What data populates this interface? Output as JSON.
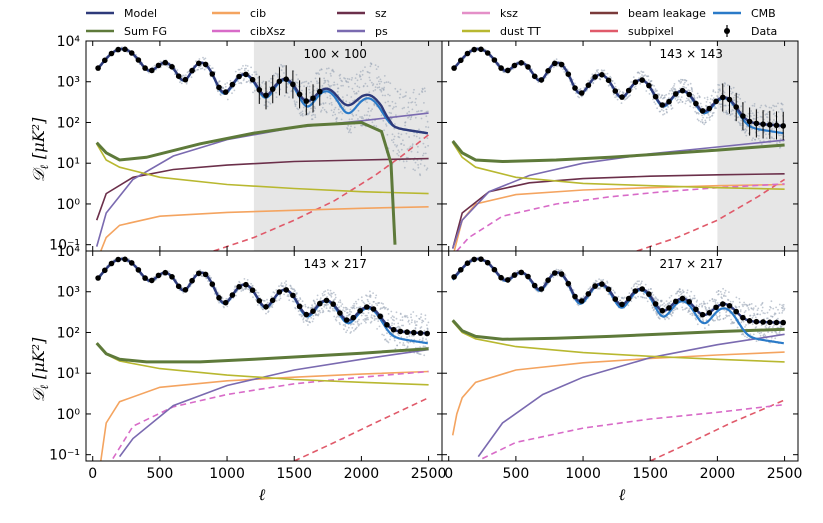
{
  "chart_data": {
    "type": "line",
    "xlabel": "ℓ",
    "ylabel_main": "𝒟",
    "ylabel_sub": "ℓ",
    "ylabel_unit": "[μK²]",
    "xlim": [
      -50,
      2600
    ],
    "ylim": [
      0.07,
      10000
    ],
    "yscale": "log",
    "x_ticks": [
      0,
      500,
      1000,
      1500,
      2000,
      2500
    ],
    "x_tick_labels": [
      "0",
      "500",
      "1000",
      "1500",
      "2000",
      "2500"
    ],
    "y_ticks": [
      0.1,
      1,
      10,
      100,
      1000,
      10000
    ],
    "y_tick_labels": [
      "10⁻¹",
      "10⁰",
      "10¹",
      "10²",
      "10³",
      "10⁴"
    ],
    "legend": [
      {
        "key": "model",
        "label": "Model",
        "color": "#2e3a7a",
        "style": "line"
      },
      {
        "key": "sumfg",
        "label": "Sum FG",
        "color": "#5e7a3a",
        "style": "line"
      },
      {
        "key": "cib",
        "label": "cib",
        "color": "#f4a460",
        "style": "line"
      },
      {
        "key": "cibxsz",
        "label": "cibXsz",
        "color": "#d86bc8",
        "style": "line"
      },
      {
        "key": "sz",
        "label": "sz",
        "color": "#6b2f4a",
        "style": "line"
      },
      {
        "key": "ps",
        "label": "ps",
        "color": "#7a6ab0",
        "style": "line"
      },
      {
        "key": "ksz",
        "label": "ksz",
        "color": "#e48fc8",
        "style": "line"
      },
      {
        "key": "dust",
        "label": "dust TT",
        "color": "#b8b830",
        "style": "line"
      },
      {
        "key": "beam",
        "label": "beam leakage",
        "color": "#7a3a3a",
        "style": "line"
      },
      {
        "key": "subpix",
        "label": "subpixel",
        "color": "#e05a6a",
        "style": "line"
      },
      {
        "key": "cmb",
        "label": "CMB",
        "color": "#2a7ac8",
        "style": "line"
      },
      {
        "key": "data",
        "label": "Data",
        "color": "#000000",
        "style": "errorbar"
      }
    ],
    "panels": [
      {
        "title": "100 × 100",
        "shade_from": 1200,
        "series": {
          "sumfg": [
            [
              30,
              32
            ],
            [
              100,
              18
            ],
            [
              200,
              12
            ],
            [
              400,
              14
            ],
            [
              800,
              30
            ],
            [
              1200,
              55
            ],
            [
              1600,
              85
            ],
            [
              2000,
              100
            ],
            [
              2150,
              60
            ],
            [
              2220,
              10
            ],
            [
              2250,
              0.1
            ]
          ],
          "ps": [
            [
              30,
              0.09
            ],
            [
              100,
              0.6
            ],
            [
              300,
              4
            ],
            [
              600,
              15
            ],
            [
              1000,
              38
            ],
            [
              1500,
              75
            ],
            [
              2000,
              110
            ],
            [
              2500,
              170
            ]
          ],
          "dust": [
            [
              30,
              30
            ],
            [
              100,
              12
            ],
            [
              200,
              8
            ],
            [
              500,
              4.5
            ],
            [
              1000,
              3
            ],
            [
              1500,
              2.4
            ],
            [
              2000,
              2
            ],
            [
              2500,
              1.8
            ]
          ],
          "cib": [
            [
              30,
              0.02
            ],
            [
              60,
              0.07
            ],
            [
              100,
              0.15
            ],
            [
              200,
              0.3
            ],
            [
              500,
              0.5
            ],
            [
              1000,
              0.62
            ],
            [
              1500,
              0.7
            ],
            [
              2000,
              0.78
            ],
            [
              2500,
              0.85
            ]
          ],
          "sz": [
            [
              30,
              0.4
            ],
            [
              100,
              1.8
            ],
            [
              300,
              4.5
            ],
            [
              600,
              7
            ],
            [
              1000,
              9
            ],
            [
              1500,
              11
            ],
            [
              2000,
              12
            ],
            [
              2500,
              13
            ]
          ],
          "subpix": [
            [
              900,
              0.07
            ],
            [
              1200,
              0.15
            ],
            [
              1500,
              0.4
            ],
            [
              1800,
              1.2
            ],
            [
              2100,
              5
            ],
            [
              2300,
              15
            ],
            [
              2500,
              50
            ]
          ]
        },
        "data_error": true
      },
      {
        "title": "143 × 143",
        "shade_from": 2000,
        "series": {
          "sumfg": [
            [
              30,
              35
            ],
            [
              100,
              18
            ],
            [
              200,
              12
            ],
            [
              400,
              11
            ],
            [
              800,
              12
            ],
            [
              1200,
              14
            ],
            [
              1600,
              17
            ],
            [
              2000,
              21
            ],
            [
              2500,
              28
            ]
          ],
          "ps": [
            [
              30,
              0.08
            ],
            [
              100,
              0.4
            ],
            [
              300,
              2
            ],
            [
              600,
              5
            ],
            [
              1000,
              10
            ],
            [
              1500,
              17
            ],
            [
              2000,
              25
            ],
            [
              2500,
              37
            ]
          ],
          "dust": [
            [
              30,
              32
            ],
            [
              100,
              14
            ],
            [
              200,
              8
            ],
            [
              500,
              4.5
            ],
            [
              1000,
              3.2
            ],
            [
              1500,
              2.8
            ],
            [
              2000,
              2.5
            ],
            [
              2500,
              2.3
            ]
          ],
          "cib": [
            [
              30,
              0.05
            ],
            [
              100,
              0.4
            ],
            [
              200,
              1
            ],
            [
              500,
              1.7
            ],
            [
              1000,
              2.2
            ],
            [
              1500,
              2.5
            ],
            [
              2000,
              2.8
            ],
            [
              2500,
              3
            ]
          ],
          "sz": [
            [
              30,
              0.08
            ],
            [
              100,
              0.6
            ],
            [
              300,
              2
            ],
            [
              600,
              3.3
            ],
            [
              1000,
              4.2
            ],
            [
              1500,
              4.8
            ],
            [
              2000,
              5.2
            ],
            [
              2500,
              5.5
            ]
          ],
          "cibxsz": [
            [
              60,
              0.07
            ],
            [
              150,
              0.15
            ],
            [
              400,
              0.5
            ],
            [
              800,
              1
            ],
            [
              1200,
              1.5
            ],
            [
              1600,
              2
            ],
            [
              2000,
              2.5
            ],
            [
              2500,
              3.1
            ]
          ],
          "subpix": [
            [
              1400,
              0.07
            ],
            [
              1700,
              0.15
            ],
            [
              2000,
              0.4
            ],
            [
              2300,
              1.5
            ],
            [
              2500,
              4
            ]
          ]
        },
        "data_error": true
      },
      {
        "title": "143 × 217",
        "shade_from": null,
        "series": {
          "sumfg": [
            [
              30,
              55
            ],
            [
              100,
              30
            ],
            [
              200,
              22
            ],
            [
              400,
              19
            ],
            [
              800,
              19
            ],
            [
              1200,
              22
            ],
            [
              1600,
              26
            ],
            [
              2000,
              31
            ],
            [
              2500,
              40
            ]
          ],
          "ps": [
            [
              200,
              0.09
            ],
            [
              300,
              0.25
            ],
            [
              600,
              1.6
            ],
            [
              1000,
              5
            ],
            [
              1500,
              12
            ],
            [
              2000,
              22
            ],
            [
              2500,
              38
            ]
          ],
          "dust": [
            [
              30,
              55
            ],
            [
              100,
              29
            ],
            [
              200,
              20
            ],
            [
              500,
              13
            ],
            [
              1000,
              9
            ],
            [
              1500,
              7
            ],
            [
              2000,
              6
            ],
            [
              2500,
              5.2
            ]
          ],
          "cib": [
            [
              60,
              0.07
            ],
            [
              100,
              0.6
            ],
            [
              200,
              2
            ],
            [
              500,
              4.5
            ],
            [
              1000,
              6.5
            ],
            [
              1500,
              8
            ],
            [
              2000,
              9.5
            ],
            [
              2500,
              11
            ]
          ],
          "cibxsz": [
            [
              150,
              0.08
            ],
            [
              300,
              0.5
            ],
            [
              600,
              1.5
            ],
            [
              1000,
              3
            ],
            [
              1500,
              5.5
            ],
            [
              2000,
              8
            ],
            [
              2500,
              11
            ]
          ],
          "subpix": [
            [
              1500,
              0.07
            ],
            [
              1800,
              0.2
            ],
            [
              2100,
              0.6
            ],
            [
              2500,
              2.5
            ]
          ]
        },
        "data_error": false
      },
      {
        "title": "217 × 217",
        "shade_from": null,
        "series": {
          "sumfg": [
            [
              30,
              200
            ],
            [
              100,
              110
            ],
            [
              200,
              80
            ],
            [
              400,
              68
            ],
            [
              800,
              72
            ],
            [
              1200,
              80
            ],
            [
              1600,
              92
            ],
            [
              2000,
              105
            ],
            [
              2500,
              120
            ]
          ],
          "ps": [
            [
              220,
              0.09
            ],
            [
              400,
              0.6
            ],
            [
              700,
              3
            ],
            [
              1000,
              8
            ],
            [
              1500,
              24
            ],
            [
              2000,
              50
            ],
            [
              2500,
              90
            ]
          ],
          "dust": [
            [
              30,
              185
            ],
            [
              100,
              100
            ],
            [
              200,
              70
            ],
            [
              500,
              45
            ],
            [
              1000,
              32
            ],
            [
              1500,
              26
            ],
            [
              2000,
              22
            ],
            [
              2500,
              19
            ]
          ],
          "cib": [
            [
              30,
              0.3
            ],
            [
              60,
              1
            ],
            [
              100,
              2.5
            ],
            [
              200,
              6
            ],
            [
              500,
              12
            ],
            [
              1000,
              18
            ],
            [
              1500,
              23
            ],
            [
              2000,
              28
            ],
            [
              2500,
              33
            ]
          ],
          "cibxsz": [
            [
              250,
              0.08
            ],
            [
              500,
              0.2
            ],
            [
              1000,
              0.45
            ],
            [
              1500,
              0.75
            ],
            [
              2000,
              1.1
            ],
            [
              2500,
              1.7
            ]
          ],
          "subpix": [
            [
              1500,
              0.07
            ],
            [
              1800,
              0.2
            ],
            [
              2100,
              0.6
            ],
            [
              2500,
              2.2
            ]
          ]
        },
        "data_error": false
      }
    ]
  }
}
